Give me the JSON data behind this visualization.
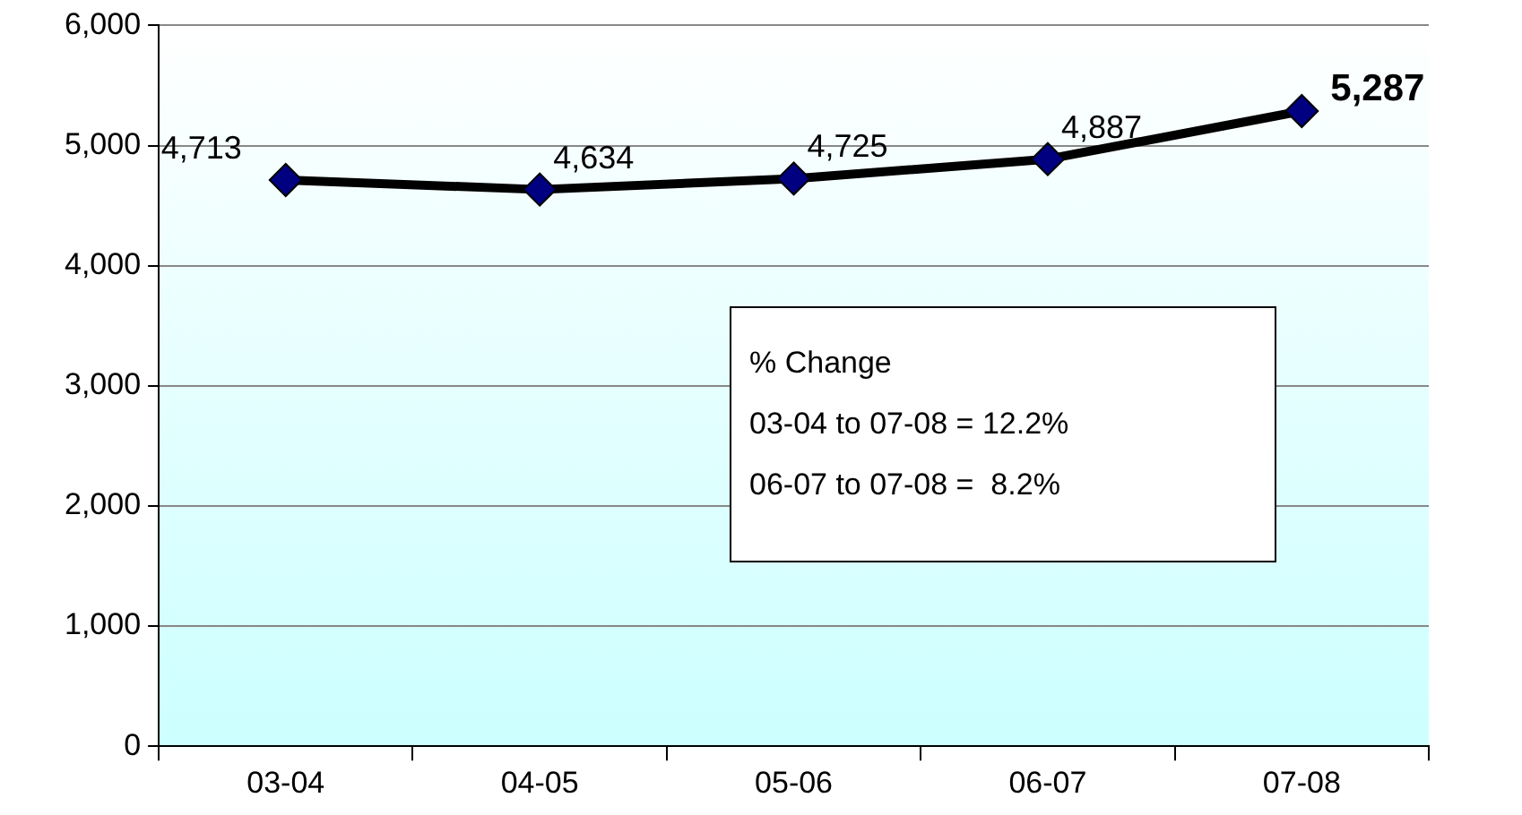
{
  "chart_data": {
    "type": "line",
    "categories": [
      "03-04",
      "04-05",
      "05-06",
      "06-07",
      "07-08"
    ],
    "series": [
      {
        "color": "#000000",
        "values": [
          4713,
          4634,
          4725,
          4887,
          5287
        ],
        "value_labels": [
          "4,713",
          "4,634",
          "4,725",
          "4,887",
          "5,287"
        ]
      }
    ],
    "ylim": [
      0,
      6000
    ],
    "yticks": [
      {
        "value": 0,
        "label": "0"
      },
      {
        "value": 1000,
        "label": "1,000"
      },
      {
        "value": 2000,
        "label": "2,000"
      },
      {
        "value": 3000,
        "label": "3,000"
      },
      {
        "value": 4000,
        "label": "4,000"
      },
      {
        "value": 5000,
        "label": "5,000"
      },
      {
        "value": 6000,
        "label": "6,000"
      }
    ],
    "grid": "y",
    "marker": "diamond",
    "line_style": "solid",
    "legend": false,
    "annotations": [
      "% Change",
      "03-04 to 07-08 = 12.2%",
      "06-07 to 07-08 =  8.2%"
    ]
  }
}
